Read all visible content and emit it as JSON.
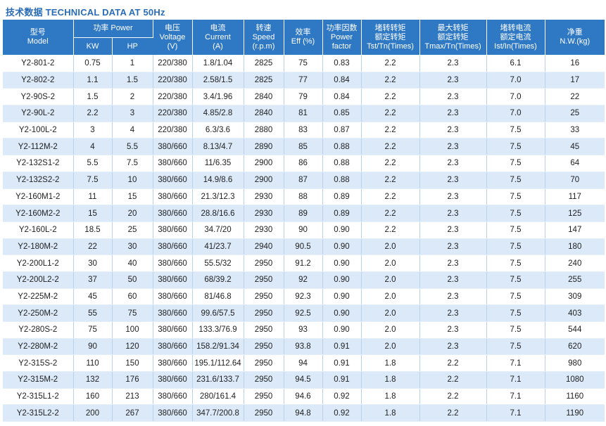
{
  "title": "技术数据 TECHNICAL DATA AT 50Hz",
  "header": {
    "model": [
      "型号",
      "Model"
    ],
    "power": "功率 Power",
    "kw": "KW",
    "hp": "HP",
    "voltage": [
      "电压",
      "Voltage",
      "(V)"
    ],
    "current": [
      "电流",
      "Current",
      "(A)"
    ],
    "speed": [
      "转速",
      "Speed",
      "(r.p.m)"
    ],
    "eff": [
      "效率",
      "Eff (%)"
    ],
    "pf": [
      "功率因数",
      "Power",
      "factor"
    ],
    "tst": [
      "堵转转矩",
      "额定转矩",
      "Tst/Tn(Times)"
    ],
    "tmax": [
      "最大转矩",
      "额定转矩",
      "Tmax/Tn(Times)"
    ],
    "ist": [
      "堵转电流",
      "额定电流",
      "Ist/In(Times)"
    ],
    "weight": [
      "净重",
      "N.W.(kg)"
    ]
  },
  "rows": [
    [
      "Y2-801-2",
      "0.75",
      "1",
      "220/380",
      "1.8/1.04",
      "2825",
      "75",
      "0.83",
      "2.2",
      "2.3",
      "6.1",
      "16"
    ],
    [
      "Y2-802-2",
      "1.1",
      "1.5",
      "220/380",
      "2.58/1.5",
      "2825",
      "77",
      "0.84",
      "2.2",
      "2.3",
      "7.0",
      "17"
    ],
    [
      "Y2-90S-2",
      "1.5",
      "2",
      "220/380",
      "3.4/1.96",
      "2840",
      "79",
      "0.84",
      "2.2",
      "2.3",
      "7.0",
      "22"
    ],
    [
      "Y2-90L-2",
      "2.2",
      "3",
      "220/380",
      "4.85/2.8",
      "2840",
      "81",
      "0.85",
      "2.2",
      "2.3",
      "7.0",
      "25"
    ],
    [
      "Y2-100L-2",
      "3",
      "4",
      "220/380",
      "6.3/3.6",
      "2880",
      "83",
      "0.87",
      "2.2",
      "2.3",
      "7.5",
      "33"
    ],
    [
      "Y2-112M-2",
      "4",
      "5.5",
      "380/660",
      "8.13/4.7",
      "2890",
      "85",
      "0.88",
      "2.2",
      "2.3",
      "7.5",
      "45"
    ],
    [
      "Y2-132S1-2",
      "5.5",
      "7.5",
      "380/660",
      "11/6.35",
      "2900",
      "86",
      "0.88",
      "2.2",
      "2.3",
      "7.5",
      "64"
    ],
    [
      "Y2-132S2-2",
      "7.5",
      "10",
      "380/660",
      "14.9/8.6",
      "2900",
      "87",
      "0.88",
      "2.2",
      "2.3",
      "7.5",
      "70"
    ],
    [
      "Y2-160M1-2",
      "11",
      "15",
      "380/660",
      "21.3/12.3",
      "2930",
      "88",
      "0.89",
      "2.2",
      "2.3",
      "7.5",
      "117"
    ],
    [
      "Y2-160M2-2",
      "15",
      "20",
      "380/660",
      "28.8/16.6",
      "2930",
      "89",
      "0.89",
      "2.2",
      "2.3",
      "7.5",
      "125"
    ],
    [
      "Y2-160L-2",
      "18.5",
      "25",
      "380/660",
      "34.7/20",
      "2930",
      "90",
      "0.90",
      "2.2",
      "2.3",
      "7.5",
      "147"
    ],
    [
      "Y2-180M-2",
      "22",
      "30",
      "380/660",
      "41/23.7",
      "2940",
      "90.5",
      "0.90",
      "2.0",
      "2.3",
      "7.5",
      "180"
    ],
    [
      "Y2-200L1-2",
      "30",
      "40",
      "380/660",
      "55.5/32",
      "2950",
      "91.2",
      "0.90",
      "2.0",
      "2.3",
      "7.5",
      "240"
    ],
    [
      "Y2-200L2-2",
      "37",
      "50",
      "380/660",
      "68/39.2",
      "2950",
      "92",
      "0.90",
      "2.0",
      "2.3",
      "7.5",
      "255"
    ],
    [
      "Y2-225M-2",
      "45",
      "60",
      "380/660",
      "81/46.8",
      "2950",
      "92.3",
      "0.90",
      "2.0",
      "2.3",
      "7.5",
      "309"
    ],
    [
      "Y2-250M-2",
      "55",
      "75",
      "380/660",
      "99.6/57.5",
      "2950",
      "92.5",
      "0.90",
      "2.0",
      "2.3",
      "7.5",
      "403"
    ],
    [
      "Y2-280S-2",
      "75",
      "100",
      "380/660",
      "133.3/76.9",
      "2950",
      "93",
      "0.90",
      "2.0",
      "2.3",
      "7.5",
      "544"
    ],
    [
      "Y2-280M-2",
      "90",
      "120",
      "380/660",
      "158.2/91.34",
      "2950",
      "93.8",
      "0.91",
      "2.0",
      "2.3",
      "7.5",
      "620"
    ],
    [
      "Y2-315S-2",
      "110",
      "150",
      "380/660",
      "195.1/112.64",
      "2950",
      "94",
      "0.91",
      "1.8",
      "2.2",
      "7.1",
      "980"
    ],
    [
      "Y2-315M-2",
      "132",
      "176",
      "380/660",
      "231.6/133.7",
      "2950",
      "94.5",
      "0.91",
      "1.8",
      "2.2",
      "7.1",
      "1080"
    ],
    [
      "Y2-315L1-2",
      "160",
      "213",
      "380/660",
      "280/161.4",
      "2950",
      "94.6",
      "0.92",
      "1.8",
      "2.2",
      "7.1",
      "1160"
    ],
    [
      "Y2-315L2-2",
      "200",
      "267",
      "380/660",
      "347.7/200.8",
      "2950",
      "94.8",
      "0.92",
      "1.8",
      "2.2",
      "7.1",
      "1190"
    ]
  ]
}
